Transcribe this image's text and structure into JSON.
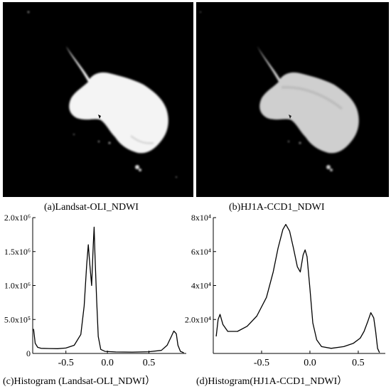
{
  "figure": {
    "panel_a_caption": "(a)Landsat-OLI_NDWI",
    "panel_b_caption": "(b)HJ1A-CCD1_NDWI",
    "panel_c_caption": "(c)Histogram (Landsat-OLI_NDWI）",
    "panel_d_caption": "(d)Histogram(HJ1A-CCD1_NDWI）"
  },
  "chart_data": [
    {
      "type": "line",
      "title": "",
      "xlabel": "",
      "ylabel": "",
      "xlim": [
        -0.9,
        0.95
      ],
      "ylim": [
        0,
        2000000
      ],
      "x_ticks": [
        -0.5,
        0.0,
        0.5
      ],
      "x_tick_labels": [
        "-0.5",
        "0.0",
        "0.5"
      ],
      "y_ticks": [
        0,
        500000,
        1000000,
        1500000,
        2000000
      ],
      "y_tick_labels": [
        "0",
        "5.0x10⁵",
        "1.0x10⁶",
        "1.5x10⁶",
        "2.0x10⁶"
      ],
      "series": [
        {
          "color": "#000000",
          "points": [
            [
              -0.89,
              360000
            ],
            [
              -0.87,
              150000
            ],
            [
              -0.84,
              90000
            ],
            [
              -0.8,
              75000
            ],
            [
              -0.7,
              72000
            ],
            [
              -0.6,
              70000
            ],
            [
              -0.5,
              80000
            ],
            [
              -0.4,
              120000
            ],
            [
              -0.32,
              280000
            ],
            [
              -0.28,
              700000
            ],
            [
              -0.25,
              1300000
            ],
            [
              -0.23,
              1600000
            ],
            [
              -0.21,
              1280000
            ],
            [
              -0.19,
              1000000
            ],
            [
              -0.17,
              1600000
            ],
            [
              -0.16,
              1860000
            ],
            [
              -0.15,
              1450000
            ],
            [
              -0.13,
              800000
            ],
            [
              -0.11,
              250000
            ],
            [
              -0.08,
              60000
            ],
            [
              -0.03,
              30000
            ],
            [
              0.1,
              22000
            ],
            [
              0.3,
              20000
            ],
            [
              0.5,
              25000
            ],
            [
              0.65,
              45000
            ],
            [
              0.72,
              120000
            ],
            [
              0.77,
              250000
            ],
            [
              0.8,
              330000
            ],
            [
              0.83,
              290000
            ],
            [
              0.85,
              120000
            ],
            [
              0.88,
              30000
            ],
            [
              0.92,
              10000
            ]
          ]
        }
      ]
    },
    {
      "type": "line",
      "title": "",
      "xlabel": "",
      "ylabel": "",
      "xlim": [
        -1.0,
        0.78
      ],
      "ylim": [
        0,
        80000
      ],
      "x_ticks": [
        -0.5,
        0.0,
        0.5
      ],
      "x_tick_labels": [
        "-0.5",
        "0.0",
        "0.5"
      ],
      "y_ticks": [
        20000,
        40000,
        60000,
        80000
      ],
      "y_tick_labels": [
        "2.0x10⁴",
        "4x10⁴",
        "6x10⁴",
        "8x10⁴"
      ],
      "series": [
        {
          "color": "#000000",
          "points": [
            [
              -0.97,
              10000
            ],
            [
              -0.95,
              20000
            ],
            [
              -0.93,
              23000
            ],
            [
              -0.9,
              17000
            ],
            [
              -0.85,
              13000
            ],
            [
              -0.75,
              13000
            ],
            [
              -0.65,
              16000
            ],
            [
              -0.55,
              22000
            ],
            [
              -0.45,
              33000
            ],
            [
              -0.38,
              48000
            ],
            [
              -0.33,
              62000
            ],
            [
              -0.28,
              73000
            ],
            [
              -0.25,
              76000
            ],
            [
              -0.21,
              72000
            ],
            [
              -0.17,
              62000
            ],
            [
              -0.13,
              51000
            ],
            [
              -0.1,
              48000
            ],
            [
              -0.07,
              58000
            ],
            [
              -0.05,
              61000
            ],
            [
              -0.03,
              57000
            ],
            [
              0.0,
              38000
            ],
            [
              0.03,
              18000
            ],
            [
              0.07,
              8000
            ],
            [
              0.12,
              4000
            ],
            [
              0.22,
              3000
            ],
            [
              0.35,
              4000
            ],
            [
              0.45,
              6000
            ],
            [
              0.52,
              9000
            ],
            [
              0.56,
              13000
            ],
            [
              0.6,
              19000
            ],
            [
              0.63,
              24000
            ],
            [
              0.66,
              21000
            ],
            [
              0.68,
              13000
            ],
            [
              0.7,
              3000
            ],
            [
              0.72,
              500
            ]
          ]
        }
      ]
    }
  ]
}
